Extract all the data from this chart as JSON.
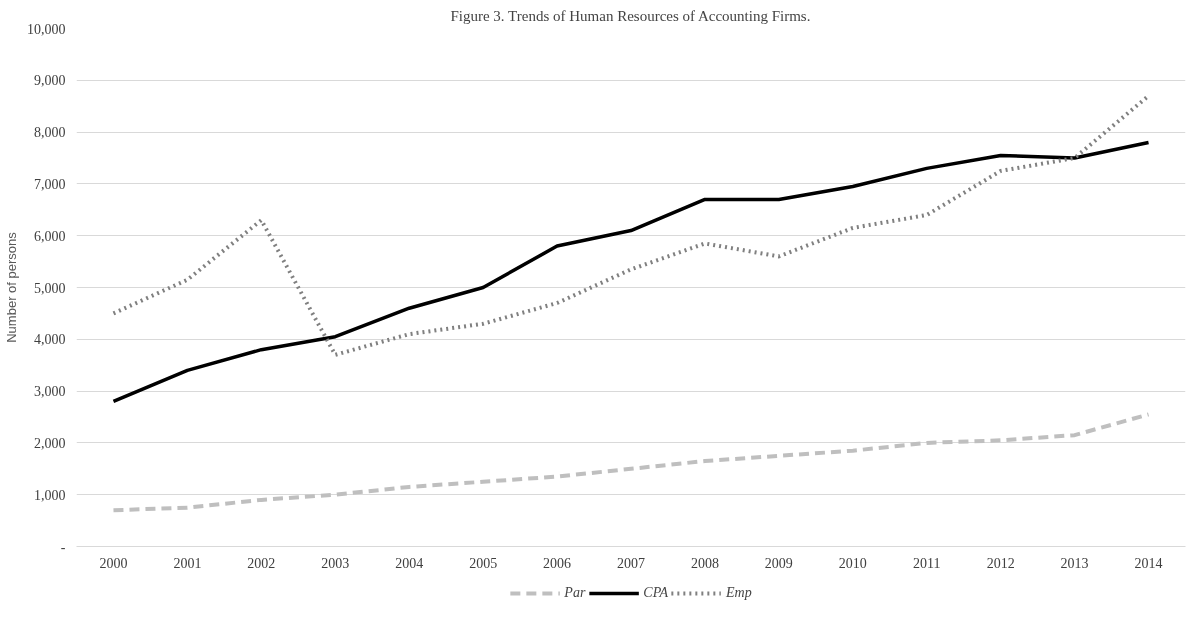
{
  "chart_data": {
    "type": "line",
    "title": "Figure 3. Trends of Human Resources of Accounting Firms.",
    "ylabel": "Number of persons",
    "categories": [
      "2000",
      "2001",
      "2002",
      "2003",
      "2004",
      "2005",
      "2006",
      "2007",
      "2008",
      "2009",
      "2010",
      "2011",
      "2012",
      "2013",
      "2014"
    ],
    "series": [
      {
        "name": "Par",
        "color": "#bfbfbf",
        "line_style": "dashed",
        "values": [
          700,
          750,
          900,
          1000,
          1150,
          1250,
          1350,
          1500,
          1650,
          1750,
          1850,
          2000,
          2050,
          2150,
          2550
        ]
      },
      {
        "name": "CPA",
        "color": "#000000",
        "line_style": "solid",
        "values": [
          2800,
          3400,
          3800,
          4050,
          4600,
          5000,
          5800,
          6100,
          6700,
          6700,
          6950,
          7300,
          7550,
          7500,
          7800
        ]
      },
      {
        "name": "Emp",
        "color": "#808080",
        "line_style": "dotted",
        "values": [
          4500,
          5150,
          6300,
          3700,
          4100,
          4300,
          4700,
          5350,
          5850,
          5600,
          6150,
          6400,
          7250,
          7500,
          8700
        ]
      }
    ],
    "ylim": [
      0,
      10000
    ],
    "yticks": [
      {
        "value": 0,
        "label": "-"
      },
      {
        "value": 1000,
        "label": "1,000"
      },
      {
        "value": 2000,
        "label": "2,000"
      },
      {
        "value": 3000,
        "label": "3,000"
      },
      {
        "value": 4000,
        "label": "4,000"
      },
      {
        "value": 5000,
        "label": "5,000"
      },
      {
        "value": 6000,
        "label": "6,000"
      },
      {
        "value": 7000,
        "label": "7,000"
      },
      {
        "value": 8000,
        "label": "8,000"
      },
      {
        "value": 9000,
        "label": "9,000"
      },
      {
        "value": 10000,
        "label": "10,000"
      }
    ],
    "grid": "y",
    "legend": "bottom",
    "marker": "none"
  }
}
